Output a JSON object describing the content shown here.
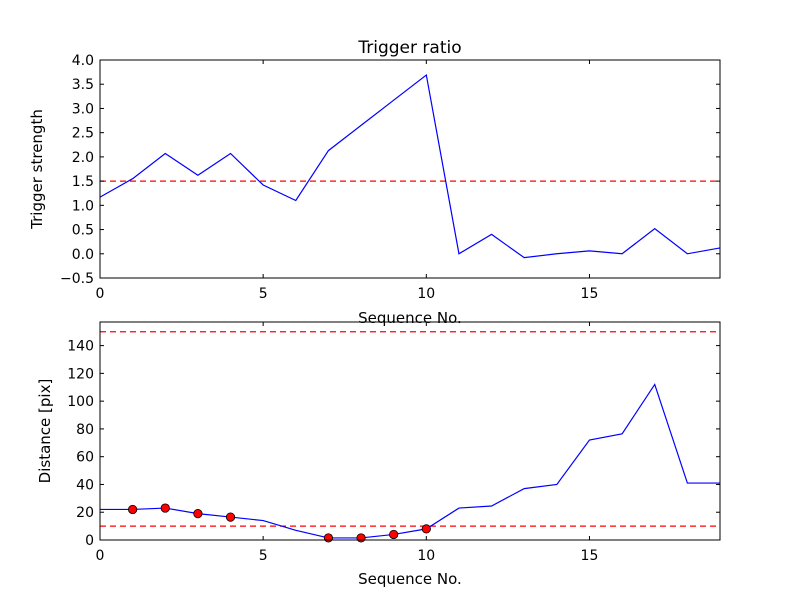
{
  "chart_data": [
    {
      "type": "line",
      "title": "Trigger ratio",
      "xlabel": "Sequence No.",
      "ylabel": "Trigger strength",
      "xlim": [
        0,
        19
      ],
      "ylim": [
        -0.5,
        4.0
      ],
      "xticks": [
        "0",
        "5",
        "10",
        "15"
      ],
      "yticks": [
        "−0.5",
        "0.0",
        "0.5",
        "1.0",
        "1.5",
        "2.0",
        "2.5",
        "3.0",
        "3.5",
        "4.0"
      ],
      "grid": false,
      "series": [
        {
          "color": "#0000ff",
          "x": [
            0,
            1,
            2,
            3,
            4,
            5,
            6,
            7,
            8,
            9,
            10,
            11,
            12,
            13,
            14,
            15,
            16,
            17,
            18,
            19
          ],
          "y": [
            1.17,
            1.55,
            2.07,
            1.62,
            2.07,
            1.42,
            1.1,
            2.13,
            2.65,
            3.17,
            3.69,
            0.0,
            0.4,
            -0.08,
            0.0,
            0.06,
            0.0,
            0.52,
            0.0,
            0.12
          ]
        }
      ],
      "hlines": [
        {
          "y": 1.5,
          "color": "#ff0000",
          "style": "dashed"
        }
      ]
    },
    {
      "type": "line",
      "title": "",
      "xlabel": "Sequence No.",
      "ylabel": "Distance [pix]",
      "xlim": [
        0,
        19
      ],
      "ylim": [
        0,
        157
      ],
      "xticks": [
        "0",
        "5",
        "10",
        "15"
      ],
      "yticks": [
        "0",
        "20",
        "40",
        "60",
        "80",
        "100",
        "120",
        "140"
      ],
      "grid": false,
      "series": [
        {
          "color": "#0000ff",
          "x": [
            0,
            1,
            2,
            3,
            4,
            5,
            6,
            7,
            8,
            9,
            10,
            11,
            12,
            13,
            14,
            15,
            16,
            17,
            18,
            19
          ],
          "y": [
            22,
            22,
            23,
            19,
            16.5,
            14,
            7,
            1.5,
            1.5,
            4,
            8,
            23,
            24.5,
            37,
            40,
            72,
            76.5,
            112,
            41,
            41
          ]
        }
      ],
      "markers": {
        "color": "#ff0000",
        "x": [
          1,
          2,
          3,
          4,
          7,
          8,
          9,
          10
        ],
        "y": [
          22,
          23,
          19,
          16.5,
          1.5,
          1.5,
          4,
          8
        ]
      },
      "hlines": [
        {
          "y": 150,
          "color": "#ff0000",
          "style": "dashed"
        },
        {
          "y": 10,
          "color": "#ff0000",
          "style": "dashed"
        }
      ]
    }
  ]
}
